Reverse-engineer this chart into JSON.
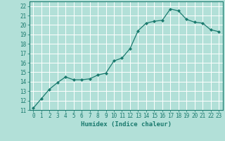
{
  "x": [
    0,
    1,
    2,
    3,
    4,
    5,
    6,
    7,
    8,
    9,
    10,
    11,
    12,
    13,
    14,
    15,
    16,
    17,
    18,
    19,
    20,
    21,
    22,
    23
  ],
  "y": [
    11.2,
    12.2,
    13.2,
    13.9,
    14.5,
    14.2,
    14.2,
    14.3,
    14.7,
    14.9,
    16.2,
    16.5,
    17.5,
    19.4,
    20.2,
    20.4,
    20.5,
    21.7,
    21.5,
    20.6,
    20.3,
    20.2,
    19.5,
    19.3
  ],
  "xlabel": "Humidex (Indice chaleur)",
  "xlim": [
    -0.5,
    23.5
  ],
  "ylim": [
    11,
    22.5
  ],
  "yticks": [
    11,
    12,
    13,
    14,
    15,
    16,
    17,
    18,
    19,
    20,
    21,
    22
  ],
  "xticks": [
    0,
    1,
    2,
    3,
    4,
    5,
    6,
    7,
    8,
    9,
    10,
    11,
    12,
    13,
    14,
    15,
    16,
    17,
    18,
    19,
    20,
    21,
    22,
    23
  ],
  "line_color": "#1a7a6e",
  "marker_color": "#1a7a6e",
  "bg_color": "#b2e0d8",
  "grid_color": "#ffffff",
  "axes_color": "#1a7a6e",
  "xlabel_fontsize": 6.5,
  "tick_fontsize": 5.5
}
